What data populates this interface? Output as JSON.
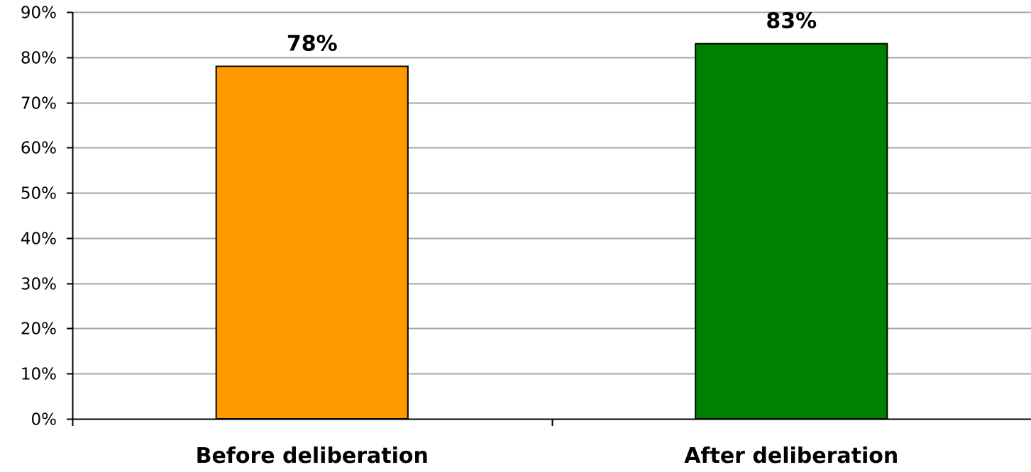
{
  "chart_data": {
    "type": "bar",
    "title": "",
    "xlabel": "",
    "ylabel": "",
    "categories": [
      "Before deliberation",
      "After deliberation"
    ],
    "values": [
      78,
      83
    ],
    "data_labels": [
      "78%",
      "83%"
    ],
    "bar_colors": [
      "#ff9900",
      "#008000"
    ],
    "ylim": [
      0,
      90
    ],
    "yticks": [
      0,
      10,
      20,
      30,
      40,
      50,
      60,
      70,
      80,
      90
    ],
    "ytick_labels": [
      "0%",
      "10%",
      "20%",
      "30%",
      "40%",
      "50%",
      "60%",
      "70%",
      "80%",
      "90%"
    ],
    "grid": true,
    "legend": "none"
  }
}
